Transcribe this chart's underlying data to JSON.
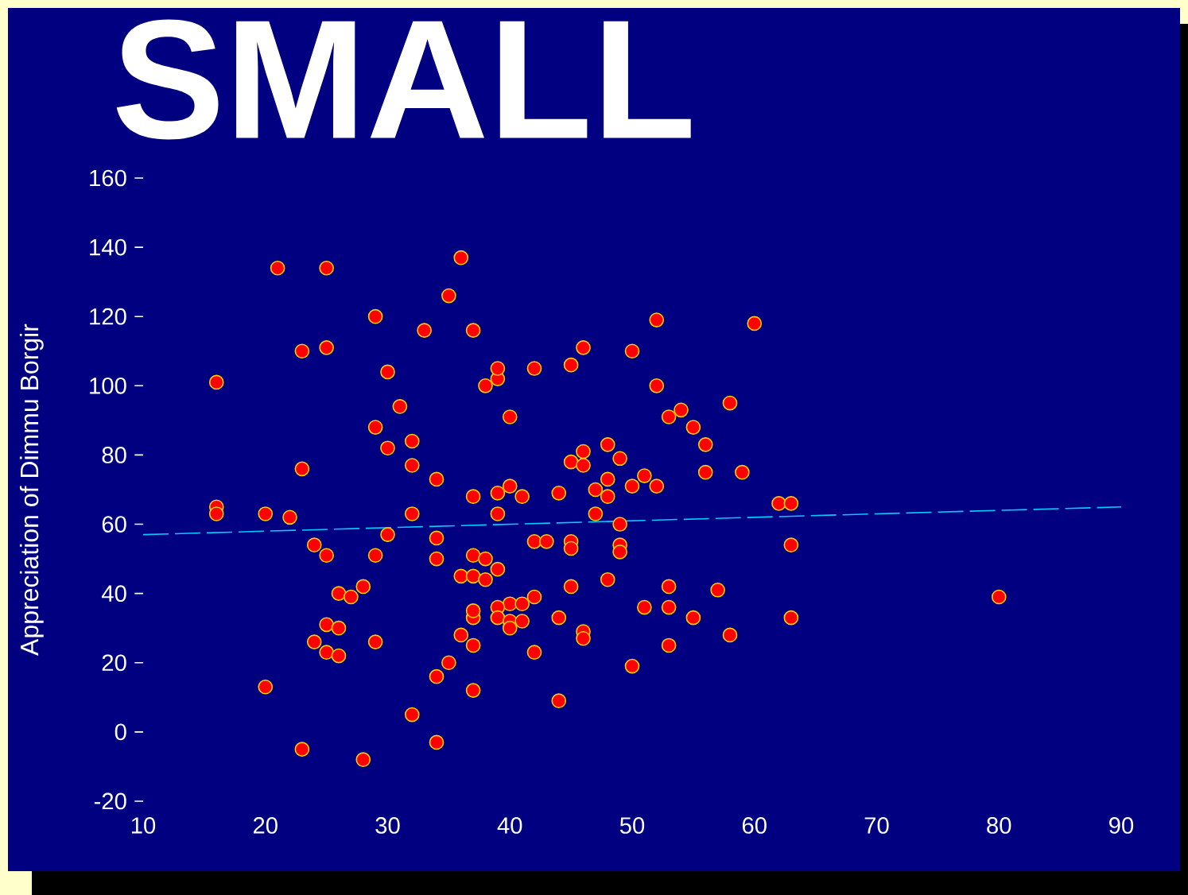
{
  "chart_data": {
    "type": "scatter",
    "title": "SMALL",
    "ylabel": "Appreciation of Dimmu Borgir",
    "xlim": [
      10,
      90
    ],
    "ylim": [
      -20,
      160
    ],
    "xticks": [
      10,
      20,
      30,
      40,
      50,
      60,
      70,
      80,
      90
    ],
    "yticks": [
      -20,
      0,
      20,
      40,
      60,
      80,
      100,
      120,
      140,
      160
    ],
    "grid": false,
    "series": [
      {
        "type": "scatter",
        "color": "#ff0000",
        "marker": "circle",
        "x": [
          16,
          16,
          16,
          20,
          22,
          21,
          25,
          36,
          20,
          23,
          25,
          29,
          23,
          24,
          25,
          26,
          27,
          28,
          25,
          26,
          24,
          25,
          26,
          29,
          23,
          28,
          29,
          30,
          29,
          30,
          30,
          31,
          32,
          32,
          33,
          35,
          37,
          34,
          32,
          34,
          34,
          36,
          37,
          38,
          36,
          37,
          37,
          37,
          35,
          34,
          37,
          32,
          34,
          37,
          37,
          38,
          39,
          38,
          39,
          39,
          40,
          39,
          40,
          41,
          39,
          42,
          45,
          46,
          40,
          39,
          39,
          40,
          40,
          41,
          42,
          41,
          42,
          42,
          43,
          44,
          44,
          44,
          45,
          46,
          46,
          45,
          45,
          45,
          46,
          46,
          47,
          47,
          48,
          48,
          48,
          48,
          49,
          49,
          49,
          49,
          50,
          50,
          52,
          52,
          51,
          52,
          51,
          50,
          53,
          54,
          55,
          56,
          56,
          53,
          53,
          53,
          55,
          57,
          58,
          59,
          60,
          58,
          62,
          63,
          63,
          63,
          80
        ],
        "values": [
          101,
          65,
          63,
          63,
          62,
          134,
          134,
          137,
          13,
          110,
          111,
          120,
          76,
          54,
          51,
          40,
          39,
          42,
          31,
          30,
          26,
          23,
          22,
          26,
          -5,
          -8,
          51,
          57,
          88,
          82,
          104,
          94,
          84,
          77,
          116,
          126,
          116,
          73,
          63,
          56,
          50,
          45,
          45,
          44,
          28,
          33,
          35,
          25,
          20,
          16,
          12,
          5,
          -3,
          68,
          51,
          50,
          47,
          100,
          102,
          105,
          91,
          69,
          71,
          68,
          63,
          105,
          106,
          111,
          37,
          36,
          33,
          32,
          30,
          37,
          39,
          32,
          23,
          55,
          55,
          9,
          33,
          69,
          78,
          81,
          77,
          55,
          53,
          42,
          29,
          27,
          70,
          63,
          83,
          73,
          68,
          44,
          79,
          60,
          54,
          52,
          71,
          110,
          119,
          100,
          74,
          71,
          36,
          19,
          91,
          93,
          88,
          83,
          75,
          42,
          36,
          25,
          33,
          41,
          95,
          75,
          118,
          28,
          66,
          66,
          54,
          33,
          39
        ]
      },
      {
        "type": "line",
        "color": "#00ccff",
        "line_style": "dashed",
        "marker": "none",
        "x": [
          10,
          90
        ],
        "values": [
          57,
          65
        ]
      }
    ]
  }
}
